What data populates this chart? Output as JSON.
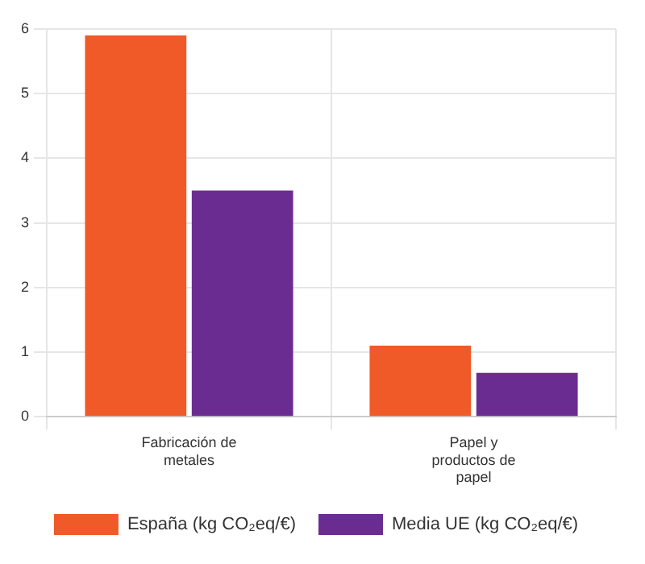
{
  "chart_data": {
    "type": "bar",
    "categories": [
      "Fabricación de metales",
      "Papel y productos de papel"
    ],
    "series": [
      {
        "name": "España (kg CO₂eq/€)",
        "color": "#f05a28",
        "values": [
          5.9,
          1.1
        ]
      },
      {
        "name": "Media UE (kg CO₂eq/€)",
        "color": "#6a2c91",
        "values": [
          3.5,
          0.68
        ]
      }
    ],
    "ylim": [
      0,
      6
    ],
    "yticks": [
      0,
      1,
      2,
      3,
      4,
      5,
      6
    ],
    "grid": true,
    "legend": "bottom"
  }
}
